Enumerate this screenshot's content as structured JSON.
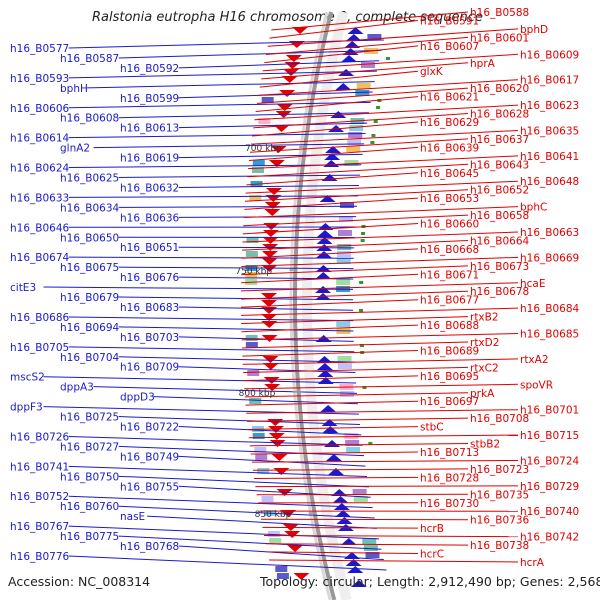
{
  "title": "Ralstonia eutropha H16 chromosome 2, complete sequence",
  "footer": {
    "accession_label": "Accession:",
    "accession": "NC_008314",
    "topology_label": "Topology:",
    "topology": "circular",
    "length_label": "Length:",
    "length": "2,912,490 bp",
    "genes_label": "Genes:",
    "genes": "2,568"
  },
  "colors": {
    "minus_strand": "#1a1acc",
    "plus_strand": "#e00000",
    "ruler": "#999999",
    "tick_label": "#333333"
  },
  "ticks": [
    "700 kbp",
    "750 kbp",
    "800 kbp",
    "850 kbp"
  ],
  "left_labels": [
    "h16_B0577",
    "h16_B0587",
    "h16_B0592",
    "h16_B0593",
    "bphH",
    "h16_B0599",
    "h16_B0606",
    "h16_B0608",
    "h16_B0613",
    "h16_B0614",
    "glnA2",
    "h16_B0619",
    "h16_B0624",
    "h16_B0625",
    "h16_B0632",
    "h16_B0633",
    "h16_B0634",
    "h16_B0636",
    "h16_B0646",
    "h16_B0650",
    "h16_B0651",
    "h16_B0674",
    "h16_B0675",
    "h16_B0676",
    "citE3",
    "h16_B0679",
    "h16_B0683",
    "h16_B0686",
    "h16_B0694",
    "h16_B0703",
    "h16_B0705",
    "h16_B0704",
    "h16_B0709",
    "mscS2",
    "dppA3",
    "dppD3",
    "dppF3",
    "h16_B0725",
    "h16_B0722",
    "h16_B0726",
    "h16_B0727",
    "h16_B0749",
    "h16_B0741",
    "h16_B0750",
    "h16_B0755",
    "h16_B0752",
    "h16_B0760",
    "nasE",
    "h16_B0767",
    "h16_B0775",
    "h16_B0768",
    "h16_B0776"
  ],
  "right_labels": [
    "h16_B0588",
    "h16_B0591",
    "bphD",
    "h16_B0601",
    "h16_B0607",
    "h16_B0609",
    "hprA",
    "glxK",
    "h16_B0617",
    "h16_B0620",
    "h16_B0621",
    "h16_B0623",
    "h16_B0628",
    "h16_B0629",
    "h16_B0635",
    "h16_B0637",
    "h16_B0639",
    "h16_B0641",
    "h16_B0643",
    "h16_B0645",
    "h16_B0648",
    "h16_B0652",
    "h16_B0653",
    "bphC",
    "h16_B0658",
    "h16_B0660",
    "h16_B0663",
    "h16_B0664",
    "h16_B0668",
    "h16_B0669",
    "h16_B0673",
    "h16_B0671",
    "hcaE",
    "h16_B0678",
    "h16_B0677",
    "h16_B0684",
    "rtxB2",
    "h16_B0688",
    "h16_B0685",
    "rtxD2",
    "h16_B0689",
    "rtxA2",
    "rtxC2",
    "h16_B0695",
    "spoVR",
    "prkA",
    "h16_B0697",
    "h16_B0701",
    "h16_B0708",
    "stbC",
    "h16_B0715",
    "stbB2",
    "h16_B0713",
    "h16_B0724",
    "h16_B0723",
    "h16_B0728",
    "h16_B0729",
    "h16_B0735",
    "h16_B0730",
    "h16_B0740",
    "h16_B0736",
    "hcrB",
    "h16_B0742",
    "h16_B0738",
    "hcrC",
    "hcrA"
  ]
}
